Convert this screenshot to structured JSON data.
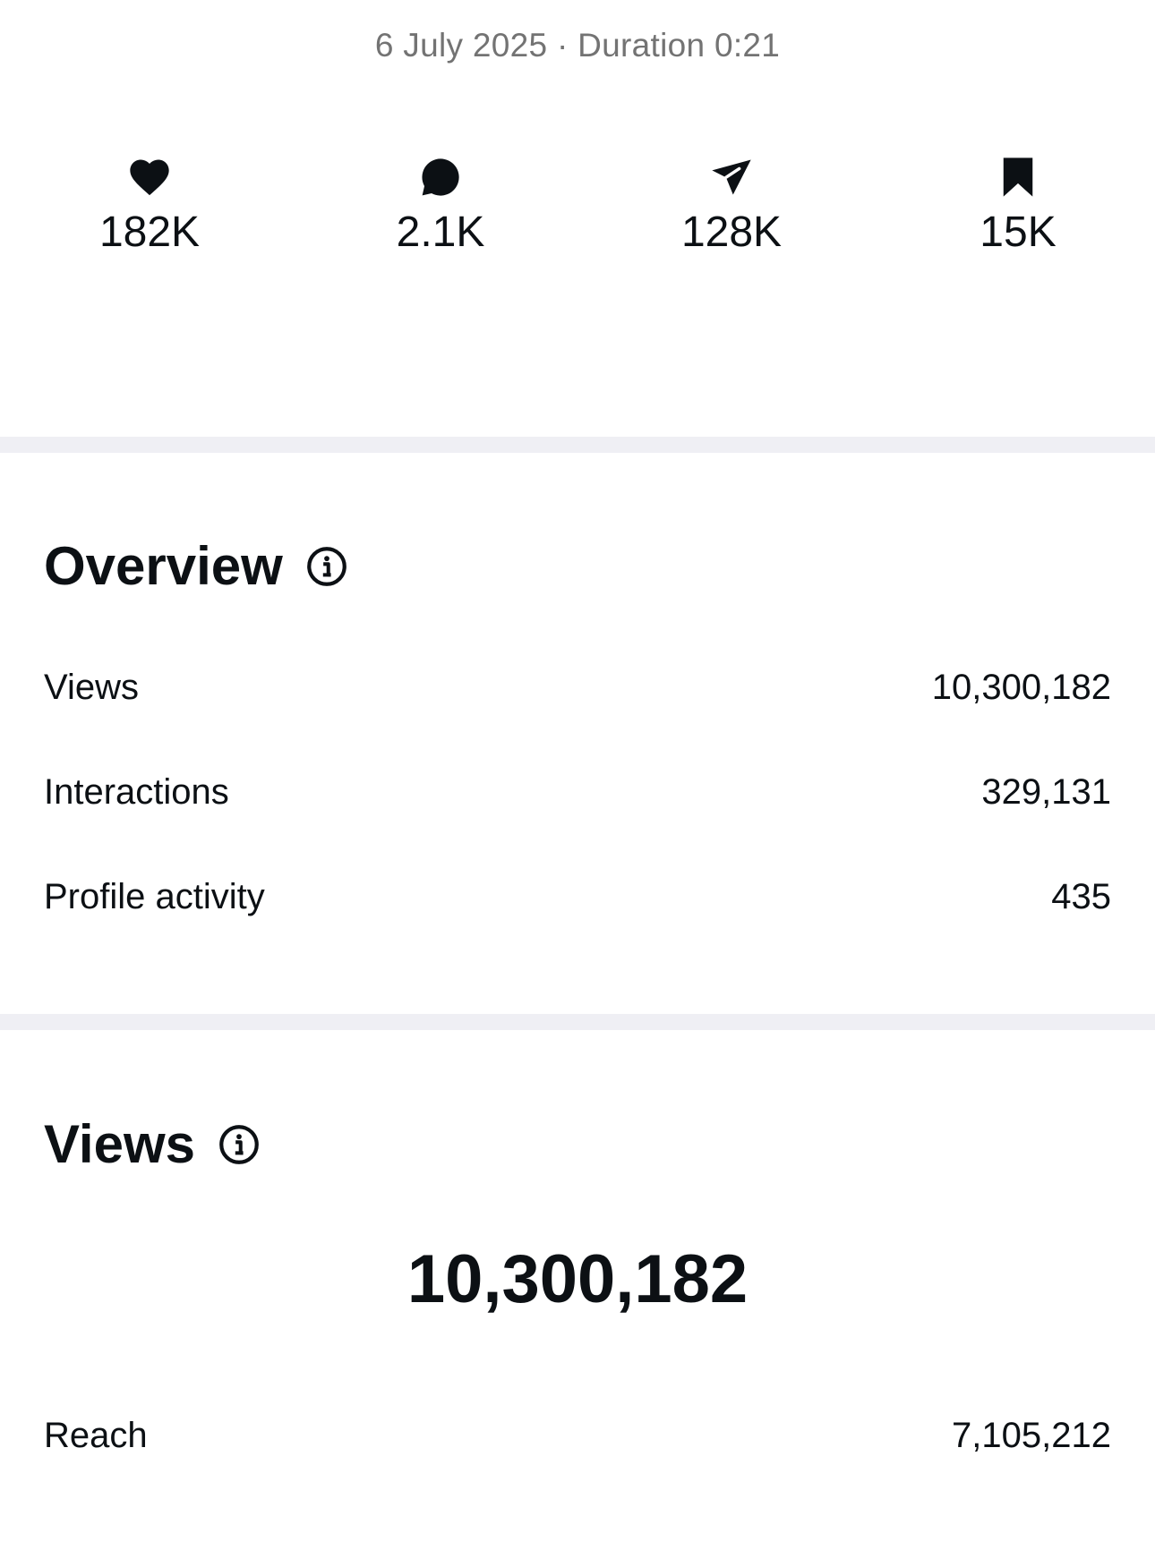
{
  "header": {
    "date_line": "6 July 2025 · Duration 0:21"
  },
  "stats": [
    {
      "icon": "heart-icon",
      "value": "182K"
    },
    {
      "icon": "comment-icon",
      "value": "2.1K"
    },
    {
      "icon": "share-icon",
      "value": "128K"
    },
    {
      "icon": "bookmark-icon",
      "value": "15K"
    }
  ],
  "overview": {
    "title": "Overview",
    "rows": [
      {
        "label": "Views",
        "value": "10,300,182"
      },
      {
        "label": "Interactions",
        "value": "329,131"
      },
      {
        "label": "Profile activity",
        "value": "435"
      }
    ]
  },
  "views": {
    "title": "Views",
    "total": "10,300,182",
    "rows": [
      {
        "label": "Reach",
        "value": "7,105,212"
      }
    ]
  },
  "colors": {
    "text": "#0c1014",
    "secondary_text": "#737373",
    "divider": "#efeff4",
    "background": "#ffffff"
  }
}
